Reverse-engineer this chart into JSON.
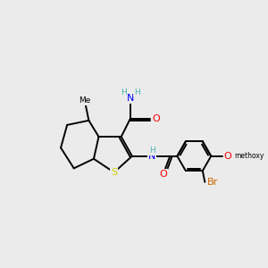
{
  "bg": "#ebebeb",
  "lw": 1.4,
  "fs": 8.0,
  "col_S": "#cccc00",
  "col_N": "#0000ff",
  "col_O": "#ff0000",
  "col_Br": "#cc6600",
  "col_H": "#4db3b3",
  "col_C": "#000000",
  "xlim": [
    -0.5,
    10.5
  ],
  "ylim": [
    1.5,
    9.5
  ]
}
